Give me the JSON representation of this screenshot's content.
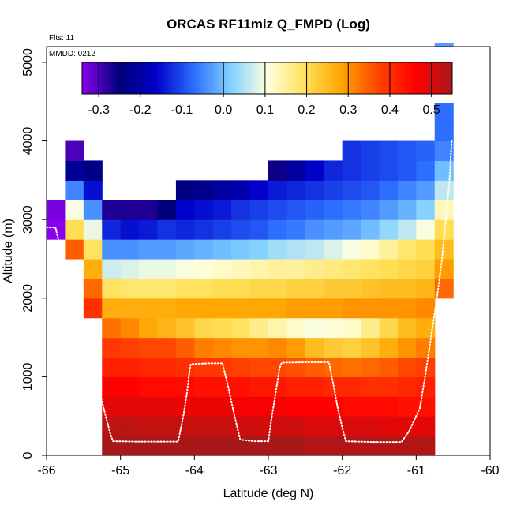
{
  "chart_data": {
    "type": "heatmap",
    "title": "ORCAS RF11miz Q_FMPD (Log)",
    "subtitle": "Flts: 11",
    "annotation": "MMDD: 0212",
    "xlabel": "Latitude (deg N)",
    "ylabel": "Altitude (m)",
    "xlim": [
      -66,
      -60
    ],
    "ylim": [
      0,
      5200
    ],
    "xticks": [
      -66,
      -65,
      -64,
      -63,
      -62,
      -61,
      -60
    ],
    "yticks": [
      0,
      1000,
      2000,
      3000,
      4000,
      5000
    ],
    "colorbar": {
      "min": -0.34,
      "max": 0.55,
      "ticks": [
        -0.3,
        -0.2,
        -0.1,
        0.0,
        0.1,
        0.2,
        0.3,
        0.4,
        0.5
      ],
      "tick_labels": [
        "-0.3",
        "-0.2",
        "-0.1",
        "0.0",
        "0.1",
        "0.2",
        "0.3",
        "0.4",
        "0.5"
      ],
      "palette": [
        "#8800ee",
        "#00007a",
        "#0000c8",
        "#2a6bff",
        "#7fd0ff",
        "#ffffdf",
        "#ffe25a",
        "#ffa500",
        "#ff4500",
        "#ff0000",
        "#a81818"
      ]
    },
    "grid": {
      "lat_edges": [
        -66.0,
        -65.75,
        -65.5,
        -65.25,
        -65.0,
        -64.75,
        -64.5,
        -64.25,
        -64.0,
        -63.75,
        -63.5,
        -63.25,
        -63.0,
        -62.75,
        -62.5,
        -62.25,
        -62.0,
        -61.75,
        -61.5,
        -61.25,
        -61.0,
        -60.75,
        -60.5
      ],
      "alt_step": 250,
      "columns": [
        {
          "lat_index": 0,
          "bottom_row": 11,
          "values": [
            -0.34,
            -0.33
          ]
        },
        {
          "lat_index": 1,
          "bottom_row": 10,
          "values": [
            0.35,
            0.2,
            0.1,
            -0.05,
            -0.22,
            -0.3
          ]
        },
        {
          "lat_index": 2,
          "bottom_row": 7,
          "values": [
            0.4,
            0.34,
            0.27,
            0.19,
            0.09,
            -0.04,
            -0.15,
            -0.24
          ]
        },
        {
          "lat_index": 3,
          "bottom_row": 0,
          "values": [
            0.55,
            0.53,
            0.49,
            0.46,
            0.42,
            0.39,
            0.33,
            0.27,
            0.19,
            0.07,
            -0.04,
            -0.13,
            -0.27
          ]
        },
        {
          "lat_index": 4,
          "bottom_row": 0,
          "values": [
            0.55,
            0.53,
            0.49,
            0.46,
            0.42,
            0.38,
            0.31,
            0.27,
            0.18,
            0.08,
            -0.04,
            -0.15,
            -0.27
          ]
        },
        {
          "lat_index": 5,
          "bottom_row": 0,
          "values": [
            0.55,
            0.52,
            0.49,
            0.45,
            0.41,
            0.37,
            0.28,
            0.27,
            0.18,
            0.09,
            -0.03,
            -0.14,
            -0.27
          ]
        },
        {
          "lat_index": 6,
          "bottom_row": 0,
          "values": [
            0.55,
            0.52,
            0.49,
            0.45,
            0.41,
            0.37,
            0.26,
            0.27,
            0.18,
            0.09,
            -0.03,
            -0.12,
            -0.25
          ]
        },
        {
          "lat_index": 7,
          "bottom_row": 0,
          "values": [
            0.55,
            0.52,
            0.48,
            0.45,
            0.4,
            0.35,
            0.24,
            0.28,
            0.19,
            0.1,
            -0.02,
            -0.13,
            -0.16,
            -0.24
          ]
        },
        {
          "lat_index": 8,
          "bottom_row": 0,
          "values": [
            0.55,
            0.52,
            0.48,
            0.44,
            0.39,
            0.32,
            0.21,
            0.28,
            0.19,
            0.11,
            -0.01,
            -0.12,
            -0.15,
            -0.23
          ]
        },
        {
          "lat_index": 9,
          "bottom_row": 0,
          "values": [
            0.55,
            0.52,
            0.48,
            0.44,
            0.39,
            0.31,
            0.2,
            0.28,
            0.2,
            0.12,
            0.0,
            -0.11,
            -0.14,
            -0.21
          ]
        },
        {
          "lat_index": 10,
          "bottom_row": 0,
          "values": [
            0.55,
            0.51,
            0.47,
            0.44,
            0.38,
            0.3,
            0.19,
            0.28,
            0.2,
            0.13,
            0.01,
            -0.1,
            -0.12,
            -0.19
          ]
        },
        {
          "lat_index": 11,
          "bottom_row": 0,
          "values": [
            0.55,
            0.51,
            0.47,
            0.43,
            0.37,
            0.3,
            0.16,
            0.28,
            0.21,
            0.14,
            0.02,
            -0.09,
            -0.11,
            -0.16
          ]
        },
        {
          "lat_index": 12,
          "bottom_row": 0,
          "values": [
            0.55,
            0.51,
            0.47,
            0.43,
            0.37,
            0.31,
            0.14,
            0.28,
            0.21,
            0.15,
            0.04,
            -0.07,
            -0.1,
            -0.14,
            -0.26
          ]
        },
        {
          "lat_index": 13,
          "bottom_row": 0,
          "values": [
            0.55,
            0.51,
            0.46,
            0.42,
            0.36,
            0.29,
            0.12,
            0.29,
            0.22,
            0.15,
            0.05,
            -0.06,
            -0.09,
            -0.13,
            -0.21
          ]
        },
        {
          "lat_index": 14,
          "bottom_row": 0,
          "values": [
            0.54,
            0.5,
            0.46,
            0.42,
            0.35,
            0.25,
            0.1,
            0.29,
            0.22,
            0.16,
            0.06,
            -0.04,
            -0.08,
            -0.12,
            -0.16
          ]
        },
        {
          "lat_index": 15,
          "bottom_row": 0,
          "values": [
            0.54,
            0.5,
            0.46,
            0.41,
            0.34,
            0.23,
            0.11,
            0.29,
            0.23,
            0.17,
            0.08,
            -0.03,
            -0.07,
            -0.11,
            -0.13
          ]
        },
        {
          "lat_index": 16,
          "bottom_row": 0,
          "values": [
            0.54,
            0.5,
            0.45,
            0.41,
            0.33,
            0.22,
            0.12,
            0.3,
            0.23,
            0.18,
            0.1,
            -0.02,
            -0.06,
            -0.1,
            -0.12,
            -0.12
          ]
        },
        {
          "lat_index": 17,
          "bottom_row": 0,
          "values": [
            0.54,
            0.5,
            0.45,
            0.4,
            0.34,
            0.24,
            0.16,
            0.3,
            0.24,
            0.19,
            0.12,
            0.0,
            -0.05,
            -0.09,
            -0.11,
            -0.11
          ]
        },
        {
          "lat_index": 18,
          "bottom_row": 0,
          "values": [
            0.54,
            0.49,
            0.45,
            0.4,
            0.35,
            0.27,
            0.21,
            0.3,
            0.25,
            0.2,
            0.15,
            0.03,
            -0.03,
            -0.07,
            -0.1,
            -0.1
          ]
        },
        {
          "lat_index": 19,
          "bottom_row": 0,
          "values": [
            0.54,
            0.49,
            0.44,
            0.41,
            0.37,
            0.3,
            0.25,
            0.3,
            0.25,
            0.21,
            0.18,
            0.06,
            -0.01,
            -0.05,
            -0.09,
            -0.09
          ]
        },
        {
          "lat_index": 20,
          "bottom_row": 0,
          "values": [
            0.54,
            0.49,
            0.44,
            0.42,
            0.38,
            0.32,
            0.27,
            0.31,
            0.26,
            0.22,
            0.2,
            0.1,
            0.02,
            -0.03,
            -0.07,
            -0.08
          ]
        },
        {
          "lat_index": 21,
          "bottom_row": 8,
          "values": [
            0.34,
            0.29,
            0.25,
            0.2,
            0.13,
            0.06,
            0.0,
            -0.05,
            -0.07,
            -0.07,
            -0.05,
            -0.04,
            -0.03
          ]
        }
      ]
    },
    "flight_track": {
      "description": "aircraft flight path (lat, alt m)",
      "points": [
        [
          -66.0,
          2900
        ],
        [
          -65.88,
          2900
        ],
        [
          -65.8,
          2600
        ],
        [
          -65.7,
          2300
        ],
        [
          -65.6,
          2000
        ],
        [
          -65.5,
          1700
        ],
        [
          -65.42,
          1400
        ],
        [
          -65.35,
          1100
        ],
        [
          -65.28,
          800
        ],
        [
          -65.2,
          500
        ],
        [
          -65.13,
          250
        ],
        [
          -65.1,
          180
        ],
        [
          -64.8,
          175
        ],
        [
          -64.55,
          175
        ],
        [
          -64.22,
          175
        ],
        [
          -64.15,
          500
        ],
        [
          -64.1,
          800
        ],
        [
          -64.07,
          1050
        ],
        [
          -64.05,
          1160
        ],
        [
          -63.8,
          1170
        ],
        [
          -63.62,
          1170
        ],
        [
          -63.55,
          900
        ],
        [
          -63.48,
          600
        ],
        [
          -63.42,
          350
        ],
        [
          -63.38,
          200
        ],
        [
          -63.2,
          180
        ],
        [
          -63.0,
          180
        ],
        [
          -62.96,
          450
        ],
        [
          -62.9,
          800
        ],
        [
          -62.85,
          1100
        ],
        [
          -62.82,
          1180
        ],
        [
          -62.5,
          1185
        ],
        [
          -62.18,
          1185
        ],
        [
          -62.12,
          900
        ],
        [
          -62.06,
          600
        ],
        [
          -62.0,
          350
        ],
        [
          -61.95,
          180
        ],
        [
          -61.6,
          170
        ],
        [
          -61.2,
          170
        ],
        [
          -61.1,
          300
        ],
        [
          -60.95,
          600
        ],
        [
          -60.88,
          1000
        ],
        [
          -60.8,
          1500
        ],
        [
          -60.72,
          2000
        ],
        [
          -60.65,
          2500
        ],
        [
          -60.6,
          3000
        ],
        [
          -60.55,
          3500
        ],
        [
          -60.52,
          4000
        ]
      ]
    }
  }
}
